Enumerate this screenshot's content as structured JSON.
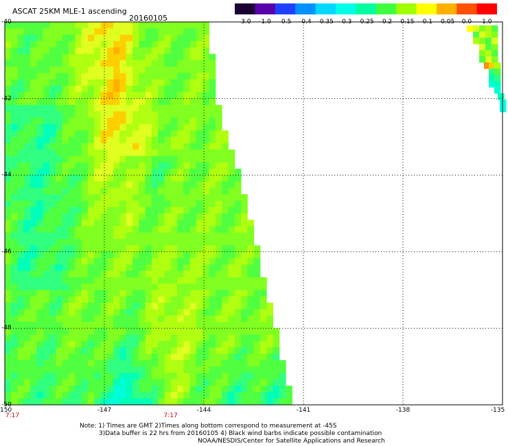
{
  "header": {
    "title": "ASCAT 25KM MLE-1 ascending",
    "date": "20160105"
  },
  "colorbar": {
    "labels": [
      "-3.0",
      "-1.0",
      "-0.5",
      "-0.4",
      "-0.35",
      "-0.3",
      "-0.25",
      "-0.2",
      "-0.15",
      "-0.1",
      "-0.05",
      "0.0",
      "1.0"
    ],
    "colors": [
      "#1a0033",
      "#5a00aa",
      "#2040ff",
      "#0090ff",
      "#00d8ff",
      "#00ffe8",
      "#00ffa0",
      "#40ff40",
      "#a0ff00",
      "#ffff00",
      "#ffb000",
      "#ff5000",
      "#ff0000"
    ]
  },
  "map": {
    "lon_labels": [
      "-150",
      "-147",
      "-144",
      "-141",
      "-138",
      "-135"
    ],
    "lat_labels": [
      "-40",
      "-42",
      "-44",
      "-46",
      "-48",
      "-50"
    ],
    "time_labels": [
      {
        "text": "7:17",
        "lon": -150
      },
      {
        "text": "7:17",
        "lon": -145
      }
    ]
  },
  "notes": {
    "line1": "Note: 1) Times are GMT 2)Times along bottom correspond to measurement at -45S",
    "line2": "3)Data buffer is 22 hrs from 20160105 4) Black wind barbs indicate possible contamination",
    "line3": "NOAA/NESDIS/Center for Satellite Applications and Research"
  }
}
